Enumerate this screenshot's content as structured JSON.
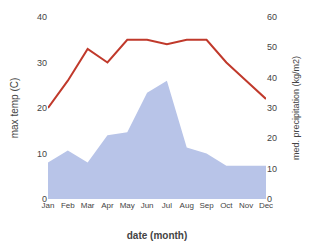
{
  "chart_data": {
    "type": "line",
    "categories": [
      "Jan",
      "Feb",
      "Mar",
      "Apr",
      "May",
      "Jun",
      "Jul",
      "Aug",
      "Sep",
      "Oct",
      "Nov",
      "Dec"
    ],
    "xlabel": "date (month)",
    "ylabel": "max temp (C)",
    "y2label": "med. precipitation (kg/m2)",
    "series": [
      {
        "type": "area",
        "axis": "y2",
        "color": "#b8c4e8",
        "values": [
          12,
          16,
          12,
          21,
          22,
          35,
          39,
          17,
          15,
          11,
          11,
          11
        ]
      },
      {
        "type": "line",
        "color": "#c0392b",
        "values": [
          20,
          26,
          33,
          30,
          35,
          35,
          34,
          35,
          35,
          30,
          26,
          22
        ]
      }
    ],
    "ylim": [
      0,
      40
    ],
    "yticks": [
      0,
      10,
      20,
      30,
      40
    ],
    "y2lim": [
      0,
      60
    ],
    "y2ticks": [
      0,
      10,
      20,
      30,
      40,
      50,
      60
    ],
    "grid": false
  }
}
